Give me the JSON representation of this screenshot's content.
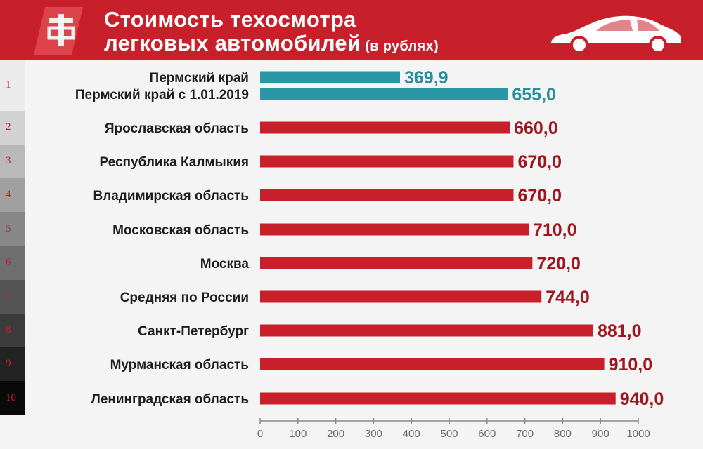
{
  "header": {
    "title_line1": "Стоимость техосмотра",
    "title_line2": "легковых автомобилей",
    "subtitle": "(в рублях)",
    "logo_icon": "federal-press-logo-icon",
    "car_icon": "car-silhouette-icon",
    "background_color": "#c8202a"
  },
  "chart_data": {
    "type": "bar",
    "orientation": "horizontal",
    "title": "Стоимость техосмотра легковых автомобилей",
    "subtitle": "(в рублях)",
    "xlim": [
      0,
      1000
    ],
    "xticks": [
      0,
      100,
      200,
      300,
      400,
      500,
      600,
      700,
      800,
      900,
      1000
    ],
    "ranks": [
      "1",
      "2",
      "3",
      "4",
      "5",
      "6",
      "7",
      "8",
      "9",
      "10"
    ],
    "bars": [
      {
        "rank": "1",
        "label": "Пермский край",
        "value": 369.9,
        "value_label": "369,9",
        "color": "#2a97a6"
      },
      {
        "rank": "1",
        "label": "Пермский край с 1.01.2019",
        "value": 655.0,
        "value_label": "655,0",
        "color": "#2a97a6"
      },
      {
        "rank": "2",
        "label": "Ярославская область",
        "value": 660.0,
        "value_label": "660,0",
        "color": "#c8202a"
      },
      {
        "rank": "3",
        "label": "Республика Калмыкия",
        "value": 670.0,
        "value_label": "670,0",
        "color": "#c8202a"
      },
      {
        "rank": "4",
        "label": "Владимирская область",
        "value": 670.0,
        "value_label": "670,0",
        "color": "#c8202a"
      },
      {
        "rank": "5",
        "label": "Московская область",
        "value": 710.0,
        "value_label": "710,0",
        "color": "#c8202a"
      },
      {
        "rank": "6",
        "label": "Москва",
        "value": 720.0,
        "value_label": "720,0",
        "color": "#c8202a"
      },
      {
        "rank": "7",
        "label": "Средняя по России",
        "value": 744.0,
        "value_label": "744,0",
        "color": "#c8202a"
      },
      {
        "rank": "8",
        "label": "Санкт-Петербург",
        "value": 881.0,
        "value_label": "881,0",
        "color": "#c8202a"
      },
      {
        "rank": "9",
        "label": "Мурманская область",
        "value": 910.0,
        "value_label": "910,0",
        "color": "#c8202a"
      },
      {
        "rank": "10",
        "label": "Ленинградская область",
        "value": 940.0,
        "value_label": "940,0",
        "color": "#c8202a"
      }
    ],
    "value_label_colors": {
      "teal": "#2a8f9c",
      "red": "#a0151d"
    },
    "grid": false,
    "legend": "none"
  }
}
